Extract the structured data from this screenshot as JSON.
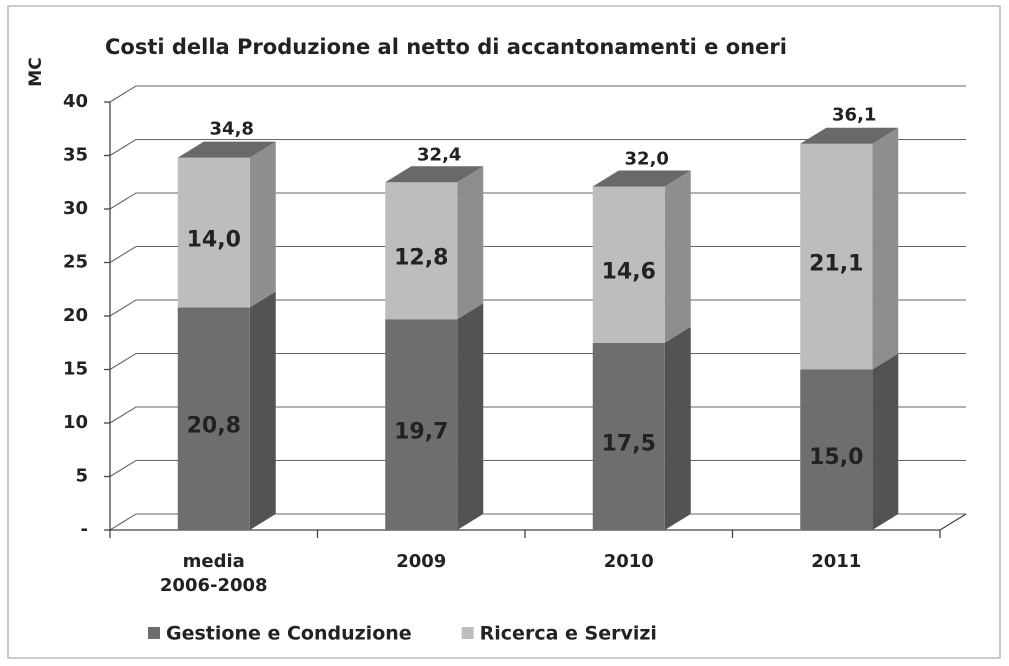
{
  "chart_data": {
    "type": "bar3d_stacked",
    "title": "Costi della Produzione al netto di accantonamenti e oneri",
    "y_label": "MC",
    "categories": [
      "media 2006-2008",
      "2009",
      "2010",
      "2011"
    ],
    "series": [
      {
        "name": "Gestione e Conduzione",
        "color": "#6e6e6e",
        "values": [
          20.8,
          19.7,
          17.5,
          15.0
        ],
        "value_labels": [
          "20,8",
          "19,7",
          "17,5",
          "15,0"
        ]
      },
      {
        "name": "Ricerca e Servizi",
        "color": "#bdbdbd",
        "values": [
          14.0,
          12.8,
          14.6,
          21.1
        ],
        "value_labels": [
          "14,0",
          "12,8",
          "14,6",
          "21,1"
        ]
      }
    ],
    "totals": [
      34.8,
      32.4,
      32.0,
      36.1
    ],
    "total_labels": [
      "34,8",
      "32,4",
      "32,0",
      "36,1"
    ],
    "ylim": [
      0,
      40
    ],
    "yticks": [
      {
        "value": 0,
        "label": "-"
      },
      5,
      10,
      15,
      20,
      25,
      30,
      35,
      40
    ],
    "grid": true,
    "legend": "bottom"
  }
}
